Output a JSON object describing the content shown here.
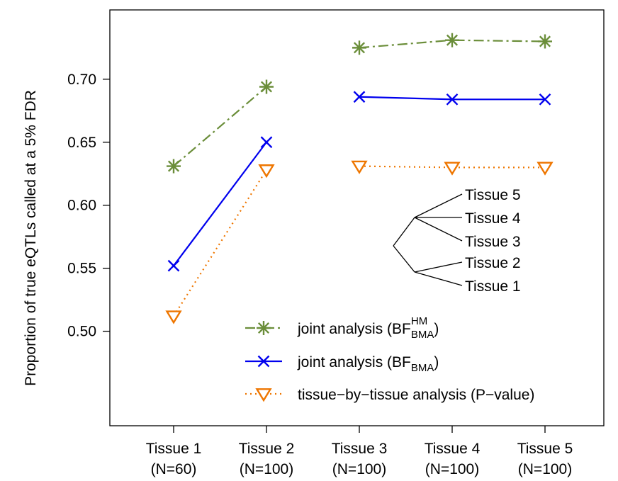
{
  "chart_data": {
    "type": "line",
    "ylabel": "Proportion of true eQTLs called at a 5% FDR",
    "ylim": [
      0.425,
      0.755
    ],
    "yticks": [
      "0.50",
      "0.55",
      "0.60",
      "0.65",
      "0.70"
    ],
    "categories": [
      {
        "name": "Tissue 1",
        "n": "(N=60)"
      },
      {
        "name": "Tissue 2",
        "n": "(N=100)"
      },
      {
        "name": "Tissue 3",
        "n": "(N=100)"
      },
      {
        "name": "Tissue 4",
        "n": "(N=100)"
      },
      {
        "name": "Tissue 5",
        "n": "(N=100)"
      }
    ],
    "segments": [
      [
        0,
        1
      ],
      [
        2,
        3,
        4
      ]
    ],
    "series": [
      {
        "name": "joint analysis (BF_BMA^HM)",
        "label_main": "joint analysis (BF",
        "label_sub": "BMA",
        "label_sup": "HM",
        "label_end": ")",
        "marker": "asterisk",
        "line": "dashdot",
        "color": "#6B8E3A",
        "values": [
          0.631,
          0.694,
          0.725,
          0.731,
          0.73
        ]
      },
      {
        "name": "joint analysis (BF_BMA)",
        "label_main": "joint analysis (BF",
        "label_sub": "BMA",
        "label_sup": "",
        "label_end": ")",
        "marker": "x",
        "line": "solid",
        "color": "#0000EE",
        "values": [
          0.552,
          0.65,
          0.686,
          0.684,
          0.684
        ]
      },
      {
        "name": "tissue-by-tissue analysis (P-value)",
        "label_main": "tissue−by−tissue analysis (P−value)",
        "label_sub": "",
        "label_sup": "",
        "label_end": "",
        "marker": "triangle-down",
        "line": "dotted",
        "color": "#EE7600",
        "values": [
          0.512,
          0.628,
          0.631,
          0.63,
          0.63
        ]
      }
    ],
    "tree_labels": [
      "Tissue 5",
      "Tissue 4",
      "Tissue 3",
      "Tissue 2",
      "Tissue 1"
    ]
  }
}
